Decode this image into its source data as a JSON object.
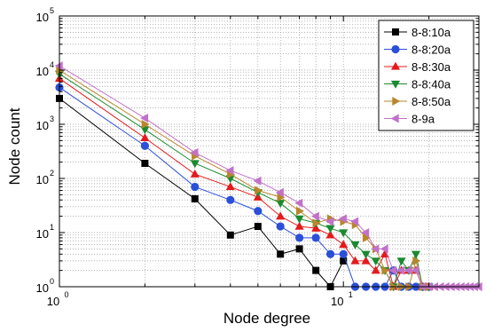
{
  "chart_data": {
    "type": "line",
    "xlabel": "Node degree",
    "ylabel": "Node count",
    "x_scale": "log",
    "y_scale": "log",
    "xlim": [
      1,
      30
    ],
    "ylim": [
      1,
      100000
    ],
    "grid": true,
    "legend_position": "top-right",
    "x_ticks": [
      {
        "value": 1,
        "base": "10",
        "exp": "0"
      },
      {
        "value": 10,
        "base": "10",
        "exp": "1"
      }
    ],
    "y_ticks": [
      {
        "value": 1,
        "base": "10",
        "exp": "0"
      },
      {
        "value": 10,
        "base": "10",
        "exp": "1"
      },
      {
        "value": 100,
        "base": "10",
        "exp": "2"
      },
      {
        "value": 1000,
        "base": "10",
        "exp": "3"
      },
      {
        "value": 10000,
        "base": "10",
        "exp": "4"
      },
      {
        "value": 100000,
        "base": "10",
        "exp": "5"
      }
    ],
    "series": [
      {
        "name": "8-8:10a",
        "color": "#000000",
        "marker": "square",
        "x": [
          1,
          2,
          3,
          4,
          5,
          6,
          7,
          8,
          9,
          10
        ],
        "y": [
          3000,
          190,
          42,
          9,
          13,
          4,
          5,
          2,
          1,
          3
        ]
      },
      {
        "name": "8-8:20a",
        "color": "#2b4fd8",
        "marker": "circle",
        "x": [
          1,
          2,
          3,
          4,
          5,
          6,
          7,
          8,
          9,
          10,
          11,
          12,
          13,
          14,
          15,
          16,
          17,
          18,
          19,
          20
        ],
        "y": [
          4800,
          400,
          70,
          40,
          25,
          13,
          8,
          8,
          4,
          4,
          1,
          1,
          1,
          1,
          2,
          1,
          1,
          1,
          1,
          1
        ]
      },
      {
        "name": "8-8:30a",
        "color": "#e41a1c",
        "marker": "triangle-up",
        "x": [
          1,
          2,
          3,
          4,
          5,
          6,
          7,
          8,
          9,
          10,
          11,
          12,
          13,
          14,
          15,
          16,
          17,
          18,
          19,
          20
        ],
        "y": [
          7000,
          560,
          120,
          70,
          45,
          20,
          13,
          12,
          9,
          6,
          3,
          3,
          2,
          4,
          1,
          2,
          2,
          2,
          1,
          1
        ]
      },
      {
        "name": "8-8:40a",
        "color": "#1b8a2f",
        "marker": "triangle-down",
        "x": [
          1,
          2,
          3,
          4,
          5,
          6,
          7,
          8,
          9,
          10,
          11,
          12,
          13,
          14,
          15,
          16,
          17,
          18,
          19,
          20
        ],
        "y": [
          8500,
          800,
          190,
          100,
          55,
          35,
          18,
          15,
          12,
          10,
          6,
          4,
          3,
          2,
          1,
          3,
          2,
          4,
          1,
          1
        ]
      },
      {
        "name": "8-8:50a",
        "color": "#b8862b",
        "marker": "triangle-right",
        "x": [
          1,
          2,
          3,
          4,
          5,
          6,
          7,
          8,
          9,
          10,
          11,
          12,
          13,
          14,
          15,
          16,
          17,
          18,
          19,
          20
        ],
        "y": [
          10000,
          1000,
          260,
          120,
          60,
          45,
          25,
          15,
          18,
          16,
          14,
          8,
          5,
          2,
          1,
          1,
          1,
          3,
          1,
          1
        ]
      },
      {
        "name": "8-9a",
        "color": "#c271c9",
        "marker": "triangle-left",
        "x": [
          1,
          2,
          3,
          4,
          5,
          6,
          7,
          8,
          9,
          10,
          11,
          12,
          13,
          14,
          15,
          16,
          17,
          18,
          19,
          20,
          21,
          22,
          23,
          24,
          25,
          26,
          27,
          28,
          29,
          30
        ],
        "y": [
          12000,
          1300,
          300,
          140,
          90,
          55,
          35,
          20,
          16,
          18,
          16,
          10,
          5,
          5,
          2,
          2,
          2,
          2,
          1,
          1,
          1,
          1,
          1,
          1,
          1,
          1,
          1,
          1,
          1,
          1
        ]
      }
    ]
  }
}
